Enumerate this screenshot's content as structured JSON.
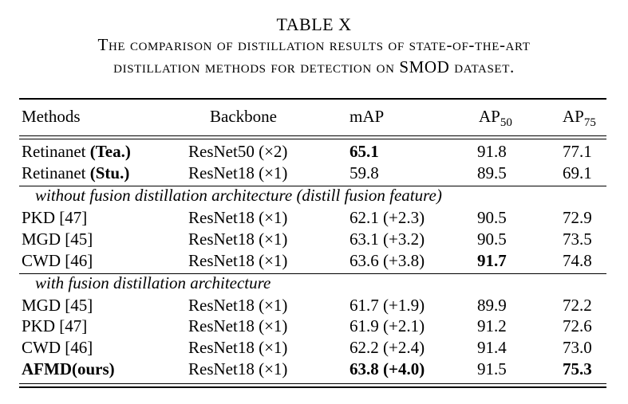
{
  "table_label": "TABLE X",
  "caption_line1": "The comparison of distillation results of state-of-the-art",
  "caption_line2": "distillation methods for detection on SMOD dataset.",
  "headers": {
    "methods": "Methods",
    "backbone": "Backbone",
    "map": "mAP",
    "ap50_base": "AP",
    "ap50_sub": "50",
    "ap75_base": "AP",
    "ap75_sub": "75"
  },
  "baseline_rows": [
    {
      "method": "Retinanet",
      "tag": "(Tea.)",
      "backbone": "ResNet50 (×2)",
      "map": "65.1",
      "ap50": "91.8",
      "ap75": "77.1"
    },
    {
      "method": "Retinanet",
      "tag": "(Stu.)",
      "backbone": "ResNet18 (×1)",
      "map": "59.8",
      "ap50": "89.5",
      "ap75": "69.1"
    }
  ],
  "section1_title": "without fusion distillation architecture (distill fusion feature)",
  "section1_rows": [
    {
      "method": "PKD [47]",
      "backbone": "ResNet18 (×1)",
      "map": "62.1 (+2.3)",
      "ap50": "90.5",
      "ap75": "72.9"
    },
    {
      "method": "MGD [45]",
      "backbone": "ResNet18 (×1)",
      "map": "63.1 (+3.2)",
      "ap50": "90.5",
      "ap75": "73.5"
    },
    {
      "method": "CWD [46]",
      "backbone": "ResNet18 (×1)",
      "map": "63.6 (+3.8)",
      "ap50": "91.7",
      "ap75": "74.8"
    }
  ],
  "section2_title": "with fusion distillation architecture",
  "section2_rows": [
    {
      "method": "MGD [45]",
      "backbone": "ResNet18 (×1)",
      "map": "61.7 (+1.9)",
      "ap50": "89.9",
      "ap75": "72.2"
    },
    {
      "method": "PKD [47]",
      "backbone": "ResNet18 (×1)",
      "map": "61.9 (+2.1)",
      "ap50": "91.2",
      "ap75": "72.6"
    },
    {
      "method": "CWD [46]",
      "backbone": "ResNet18 (×1)",
      "map": "62.2 (+2.4)",
      "ap50": "91.4",
      "ap75": "73.0"
    },
    {
      "method": "AFMD(ours)",
      "backbone": "ResNet18 (×1)",
      "map": "63.8 (+4.0)",
      "ap50": "91.5",
      "ap75": "75.3"
    }
  ]
}
